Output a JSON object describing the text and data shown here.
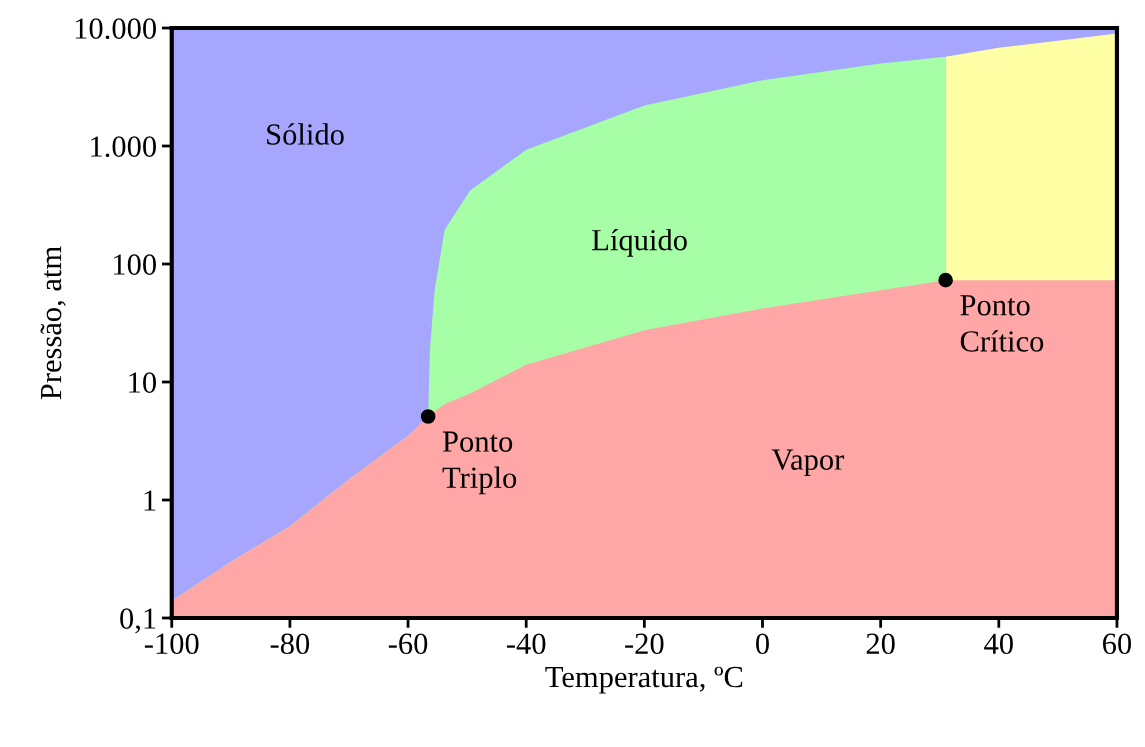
{
  "chart_data": {
    "type": "area",
    "xlabel": "Temperatura, ºC",
    "ylabel": "Pressão, atm",
    "log": "y",
    "xlim": [
      -100,
      60
    ],
    "xticks": [
      -100,
      -80,
      -60,
      -40,
      -20,
      0,
      20,
      40,
      60
    ],
    "ylim": [
      0.1,
      10000
    ],
    "yticks": [
      {
        "value": 0.1,
        "label": "0,1"
      },
      1,
      10,
      100,
      {
        "value": 1000,
        "label": "1.000"
      },
      {
        "value": 10000,
        "label": "10.000"
      }
    ],
    "grid": false,
    "series": [
      {
        "name": "Sólido",
        "color": "#a6a6ff",
        "x": [
          -100,
          60
        ],
        "values": [
          10000,
          10000
        ]
      },
      {
        "color": "#ffffa6",
        "x": [
          31,
          40,
          50,
          60
        ],
        "values": [
          5700,
          6800,
          7800,
          9000
        ]
      },
      {
        "name": "Líquido",
        "color": "#a6ffa6",
        "x": [
          -100,
          -90,
          -80,
          -70,
          -60,
          -56.6,
          -56.3,
          -55.5,
          -53.8,
          -49.5,
          -40,
          -20,
          0,
          20,
          31
        ],
        "values": [
          0.14,
          0.3,
          0.6,
          1.5,
          3.5,
          5.1,
          18.6,
          60,
          195,
          420,
          930,
          2200,
          3600,
          5000,
          5700
        ]
      },
      {
        "name": "Vapor",
        "color": "#ffa6a6",
        "x": [
          -100,
          -90,
          -80,
          -70,
          -60,
          -56.6,
          -53.8,
          -49.5,
          -40,
          -20,
          0,
          20,
          31,
          40,
          50,
          60
        ],
        "values": [
          0.14,
          0.3,
          0.6,
          1.5,
          3.5,
          5.1,
          6.5,
          8,
          14,
          27.5,
          42,
          60,
          73,
          73,
          73,
          73
        ]
      },
      {
        "type": "scatter",
        "color": "#000000",
        "marker": "circle",
        "x": [
          -56.6,
          31
        ],
        "values": [
          5.1,
          73
        ]
      }
    ],
    "annotations": [
      {
        "text": "Ponto\nTriplo",
        "x": -56.6,
        "y": 5.1
      },
      {
        "text": "Ponto\nCrítico",
        "x": 31,
        "y": 73
      }
    ]
  }
}
